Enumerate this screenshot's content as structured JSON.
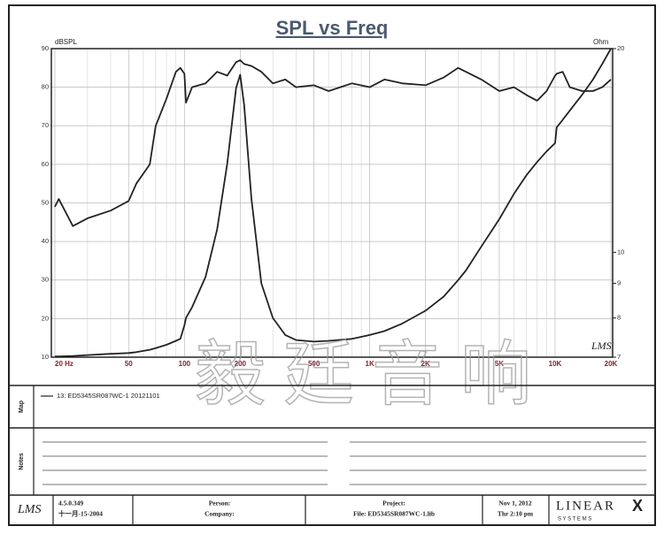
{
  "chart_data": {
    "type": "line",
    "title": "SPL vs Freq",
    "y_label": "dBSPL",
    "y2_label": "Ohm",
    "logo": "LMS",
    "xlog": true,
    "y2log": true,
    "grid": true,
    "xlim": [
      20,
      20000
    ],
    "ylim": [
      10,
      90
    ],
    "y2lim": [
      7,
      20
    ],
    "xticks": [
      {
        "value": 20,
        "label": "20 Hz"
      },
      50,
      100,
      200,
      500,
      {
        "value": 1000,
        "label": "1K"
      },
      {
        "value": 2000,
        "label": "2K"
      },
      {
        "value": 5000,
        "label": "5K"
      },
      {
        "value": 10000,
        "label": "10K"
      },
      {
        "value": 20000,
        "label": "20K"
      }
    ],
    "x_minor_grid": [
      30,
      40,
      60,
      70,
      80,
      90,
      300,
      400,
      600,
      700,
      800,
      900,
      3000,
      4000,
      6000,
      7000,
      8000,
      9000
    ],
    "yticks": [
      10,
      20,
      30,
      40,
      50,
      60,
      70,
      80,
      90
    ],
    "y2ticks": [
      7,
      8,
      9,
      10,
      20
    ],
    "x": [
      20,
      21,
      25,
      30,
      40,
      50,
      55,
      65,
      70,
      80,
      90,
      95,
      100,
      102,
      110,
      130,
      150,
      170,
      190,
      200,
      210,
      230,
      260,
      300,
      350,
      400,
      500,
      600,
      800,
      1000,
      1200,
      1500,
      2000,
      2500,
      3000,
      3300,
      4000,
      5000,
      6000,
      7000,
      8000,
      9000,
      10000,
      10200,
      11000,
      12000,
      14000,
      16000,
      18000,
      20000
    ],
    "series": [
      {
        "name": "13: ED5345SR087WC-1 20121101",
        "color": "#222222",
        "values": [
          49,
          51,
          44,
          46,
          48,
          50.5,
          55,
          60,
          70,
          77,
          84,
          85,
          83.5,
          76,
          80,
          81,
          84,
          83,
          86.5,
          87,
          86,
          85.5,
          84,
          81,
          82,
          80,
          80.5,
          79,
          81,
          80,
          82,
          81,
          80.5,
          82.5,
          85,
          84,
          82,
          79,
          80,
          78,
          76.5,
          79,
          83,
          83.5,
          84,
          80,
          79,
          79,
          80,
          82
        ]
      },
      {
        "color": "#222222",
        "axis": "y2",
        "values": [
          7.02,
          7.02,
          7.03,
          7.05,
          7.08,
          7.1,
          7.12,
          7.18,
          7.22,
          7.3,
          7.4,
          7.45,
          7.8,
          8.0,
          8.3,
          9.2,
          10.8,
          13.5,
          17.5,
          18.3,
          16.5,
          12,
          9,
          8,
          7.55,
          7.42,
          7.38,
          7.4,
          7.45,
          7.55,
          7.65,
          7.85,
          8.2,
          8.6,
          9.1,
          9.4,
          10.2,
          11.2,
          12.2,
          13.0,
          13.6,
          14.1,
          14.5,
          15.3,
          15.7,
          16.2,
          17.1,
          18.0,
          19.0,
          20
        ]
      }
    ]
  },
  "watermark": "毅廷音响",
  "panels": {
    "map": "Map",
    "notes": "Notes"
  },
  "footer": {
    "logo": "LMS",
    "version": "4.5.0.349",
    "version_date": "十一月-15-2004",
    "person": "Person:",
    "company": "Company:",
    "project": "Project:",
    "file": "File: ED5345SR087WC-1.lib",
    "date": "Nov 1, 2012",
    "time": "Thr  2:10 pm",
    "brand": "LINEAR",
    "brand_x": "X",
    "brand_sub": "S Y S T E M S"
  }
}
